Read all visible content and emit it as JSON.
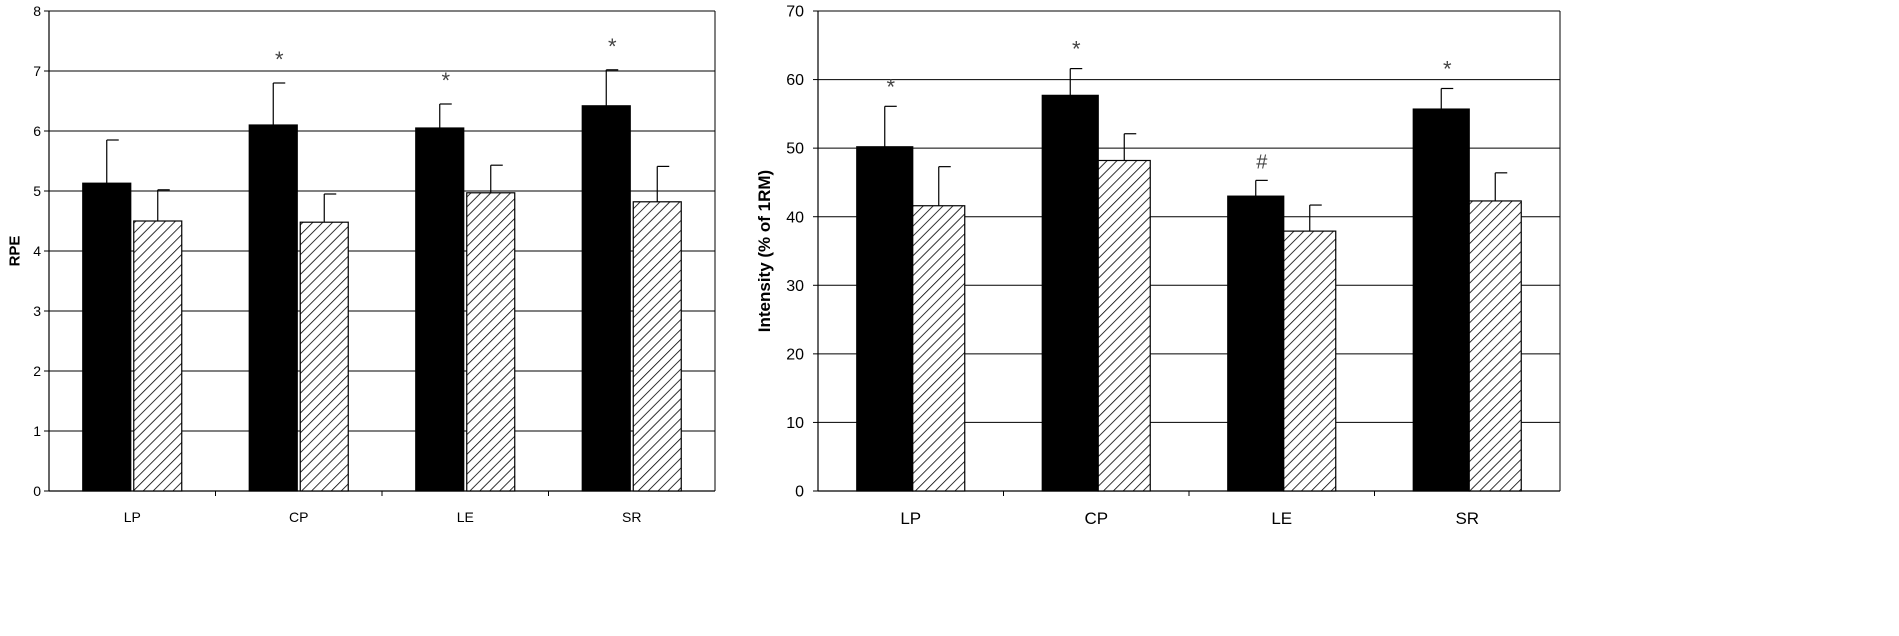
{
  "chart_data": [
    {
      "type": "bar",
      "title": "",
      "xlabel": "",
      "ylabel": "RPE",
      "ylim": [
        0,
        8
      ],
      "yticks": [
        0,
        1,
        2,
        3,
        4,
        5,
        6,
        7,
        8
      ],
      "grid": true,
      "categories": [
        "LP",
        "CP",
        "LE",
        "SR"
      ],
      "series": [
        {
          "fill": "#000000",
          "pattern": "solid",
          "values": [
            5.13,
            6.1,
            6.05,
            6.42
          ],
          "errors": [
            0.72,
            0.7,
            0.4,
            0.6
          ]
        },
        {
          "fill": "#ffffff",
          "pattern": "diagonal-hatch",
          "values": [
            4.5,
            4.48,
            4.97,
            4.82
          ],
          "errors": [
            0.52,
            0.47,
            0.46,
            0.59
          ]
        }
      ],
      "annotations": [
        {
          "category": "CP",
          "text": "*"
        },
        {
          "category": "LE",
          "text": "*"
        },
        {
          "category": "SR",
          "text": "*"
        }
      ]
    },
    {
      "type": "bar",
      "title": "",
      "xlabel": "",
      "ylabel": "Intensity (% of 1RM)",
      "ylim": [
        0,
        70
      ],
      "yticks": [
        0,
        10,
        20,
        30,
        40,
        50,
        60,
        70
      ],
      "grid": true,
      "categories": [
        "LP",
        "CP",
        "LE",
        "SR"
      ],
      "series": [
        {
          "fill": "#000000",
          "pattern": "solid",
          "values": [
            50.2,
            57.7,
            43.0,
            55.7
          ],
          "errors": [
            5.9,
            3.9,
            2.3,
            3.0
          ]
        },
        {
          "fill": "#ffffff",
          "pattern": "diagonal-hatch",
          "values": [
            41.6,
            48.2,
            37.9,
            42.3
          ],
          "errors": [
            5.7,
            3.9,
            3.8,
            4.1
          ]
        }
      ],
      "annotations": [
        {
          "category": "LP",
          "text": "*"
        },
        {
          "category": "CP",
          "text": "*"
        },
        {
          "category": "LE",
          "text": "#"
        },
        {
          "category": "SR",
          "text": "*"
        }
      ]
    }
  ]
}
